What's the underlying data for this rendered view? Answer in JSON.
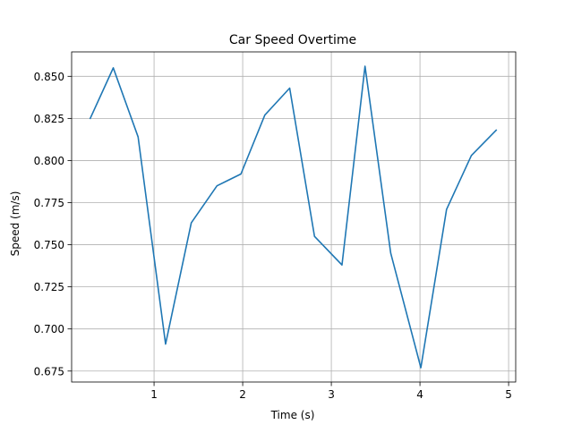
{
  "chart_data": {
    "type": "line",
    "title": "Car Speed Overtime",
    "xlabel": "Time (s)",
    "ylabel": "Speed (m/s)",
    "xlim": [
      0.07,
      5.08
    ],
    "ylim": [
      0.6685,
      0.8645
    ],
    "xticks": [
      1,
      2,
      3,
      4,
      5
    ],
    "yticks": [
      0.675,
      0.7,
      0.725,
      0.75,
      0.775,
      0.8,
      0.825,
      0.85
    ],
    "x_tick_labels": [
      "1",
      "2",
      "3",
      "4",
      "5"
    ],
    "y_tick_labels": [
      "0.675",
      "0.700",
      "0.725",
      "0.750",
      "0.775",
      "0.800",
      "0.825",
      "0.850"
    ],
    "grid": true,
    "series": [
      {
        "color": "#1f77b4",
        "x": [
          0.28,
          0.54,
          0.82,
          1.13,
          1.42,
          1.71,
          1.98,
          2.25,
          2.53,
          2.81,
          3.12,
          3.38,
          3.67,
          4.01,
          4.3,
          4.58,
          4.86
        ],
        "y": [
          0.825,
          0.855,
          0.814,
          0.691,
          0.763,
          0.785,
          0.792,
          0.827,
          0.843,
          0.755,
          0.738,
          0.856,
          0.745,
          0.677,
          0.771,
          0.803,
          0.818
        ]
      }
    ]
  }
}
